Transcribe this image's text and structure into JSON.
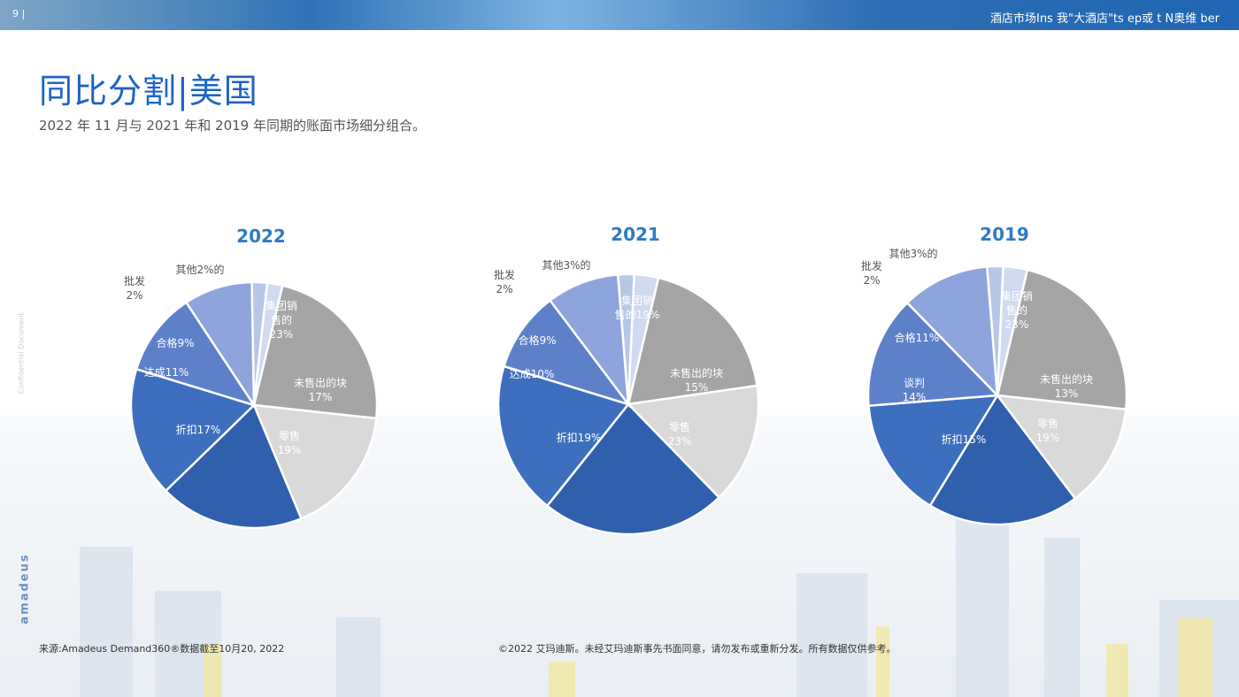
{
  "header": {
    "page_number": "9 |",
    "title": "酒店市场Ins 我\"大酒店\"ts    ep或 t    N奥维    ber"
  },
  "main": {
    "title": "同比分割|美国",
    "subtitle": "2022 年 11 月与 2021 年和 2019 年同期的账面市场细分组合。"
  },
  "sidebar": {
    "confidential": "Confidential Document",
    "logo": "amadeus"
  },
  "footer": {
    "source": "来源:Amadeus Demand360®数据截至10月20, 2022",
    "copyright": "©2022 艾玛迪斯。未经艾玛迪斯事先书面同意，请勿发布或重新分发。所有数据仅供参考。"
  },
  "colors": {
    "group": "#a5a5a5",
    "unsold": "#d9d9d9",
    "retail": "#2f5fad",
    "discount": "#3d6fbe",
    "negotiated": "#5d81c9",
    "qualified": "#8ea4dc",
    "wholesale": "#b7c7e8",
    "other": "#d0daf0"
  },
  "chart_data": [
    {
      "type": "pie",
      "title": "2022",
      "categories": [
        "集团销售的",
        "未售出的块",
        "零售",
        "折扣",
        "达成",
        "合格",
        "批发",
        "其他"
      ],
      "values": [
        23,
        17,
        19,
        17,
        11,
        9,
        2,
        2
      ],
      "labels": [
        [
          "集团销",
          "售的",
          "23%"
        ],
        [
          "未售出的块",
          "17%"
        ],
        [
          "零售",
          "19%"
        ],
        [
          "折扣17%"
        ],
        [
          "达成11%"
        ],
        [
          "合格9%"
        ],
        [
          "批发",
          "2%"
        ],
        [
          "其他2%的"
        ]
      ]
    },
    {
      "type": "pie",
      "title": "2021",
      "categories": [
        "集团销售的",
        "未售出的块",
        "零售",
        "折扣",
        "达成",
        "合格",
        "批发",
        "其他"
      ],
      "values": [
        19,
        15,
        23,
        19,
        10,
        9,
        2,
        3
      ],
      "labels": [
        [
          "集团销",
          "售的19%"
        ],
        [
          "未售出的块",
          "15%"
        ],
        [
          "零售",
          "23%"
        ],
        [
          "折扣19%"
        ],
        [
          "达成10%"
        ],
        [
          "合格9%"
        ],
        [
          "批发",
          "2%"
        ],
        [
          "其他3%的"
        ]
      ]
    },
    {
      "type": "pie",
      "title": "2019",
      "categories": [
        "集团销售的",
        "未售出的块",
        "零售",
        "折扣",
        "谈判",
        "合格",
        "批发",
        "其他"
      ],
      "values": [
        23,
        13,
        19,
        15,
        14,
        11,
        2,
        3
      ],
      "labels": [
        [
          "集团销",
          "售的",
          "23%"
        ],
        [
          "未售出的块",
          "13%"
        ],
        [
          "零售",
          "19%"
        ],
        [
          "折扣15%"
        ],
        [
          "谈判",
          "14%"
        ],
        [
          "合格11%"
        ],
        [
          "批发",
          "2%"
        ],
        [
          "其他3%的"
        ]
      ]
    }
  ]
}
